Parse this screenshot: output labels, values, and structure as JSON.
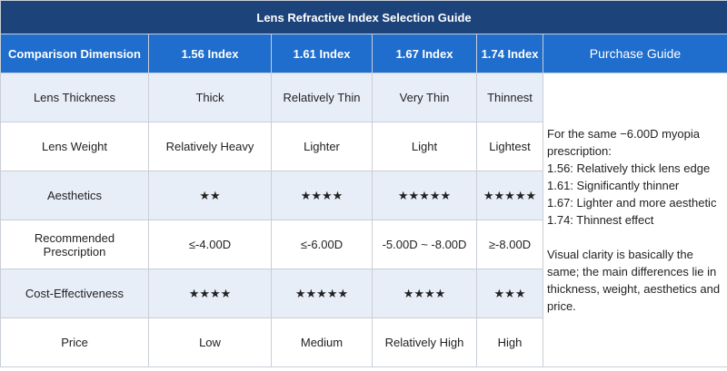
{
  "table": {
    "title": "Lens Refractive Index Selection Guide",
    "header": [
      "Comparison Dimension",
      "1.56 Index",
      "1.61 Index",
      "1.67 Index",
      "1.74 Index",
      "Purchase Guide"
    ],
    "rows": [
      [
        "Lens Thickness",
        "Thick",
        "Relatively Thin",
        "Very Thin",
        "Thinnest"
      ],
      [
        "Lens Weight",
        "Relatively Heavy",
        "Lighter",
        "Light",
        "Lightest"
      ],
      [
        "Aesthetics",
        "★★",
        "★★★★",
        "★★★★★",
        "★★★★★"
      ],
      [
        "Recommended Prescription",
        "≤-4.00D",
        "≤-6.00D",
        "-5.00D ~ -8.00D",
        "≥-8.00D"
      ],
      [
        "Cost-Effectiveness",
        "★★★★",
        "★★★★★",
        "★★★★",
        "★★★"
      ],
      [
        "Price",
        "Low",
        "Medium",
        "Relatively High",
        "High"
      ]
    ],
    "guide": [
      "For the same −6.00D myopia prescription:",
      "1.56: Relatively thick lens edge",
      "1.61: Significantly thinner",
      "1.67: Lighter and more aesthetic",
      "1.74: Thinnest effect",
      "Visual clarity is basically the same; the main differences lie in thickness, weight, aesthetics and price."
    ]
  }
}
